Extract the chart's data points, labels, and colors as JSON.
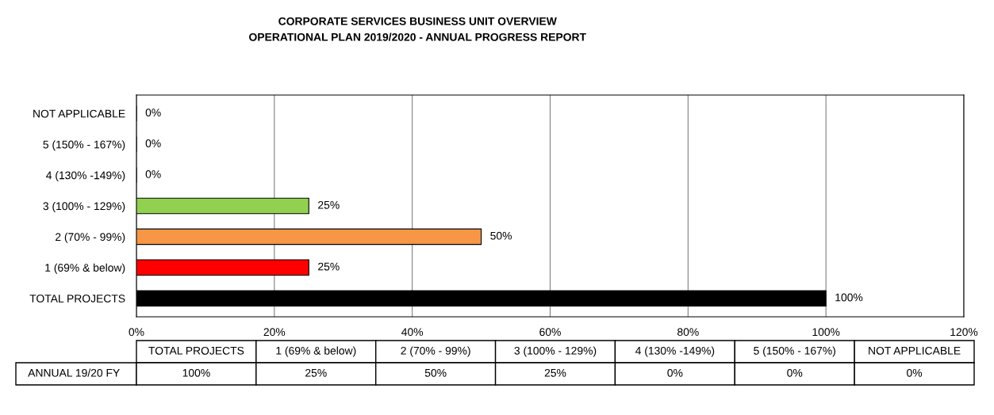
{
  "chart_data": {
    "type": "bar",
    "orientation": "horizontal",
    "title": "CORPORATE SERVICES BUSINESS UNIT OVERVIEW",
    "subtitle": "OPERATIONAL PLAN 2019/2020 - ANNUAL PROGRESS REPORT",
    "categories": [
      "NOT APPLICABLE",
      "5 (150% - 167%)",
      "4 (130% -149%)",
      "3 (100% - 129%)",
      "2 (70% - 99%)",
      "1 (69% & below)",
      "TOTAL PROJECTS"
    ],
    "series": [
      {
        "name": "ANNUAL 19/20 FY",
        "values": [
          0,
          0,
          0,
          25,
          50,
          25,
          100
        ],
        "colors": [
          "#ffffff",
          "#ffffff",
          "#ffffff",
          "#92d050",
          "#f79646",
          "#ff0000",
          "#000000"
        ],
        "value_labels": [
          "0%",
          "0%",
          "0%",
          "25%",
          "50%",
          "25%",
          "100%"
        ]
      }
    ],
    "xlim": [
      0,
      120
    ],
    "xticks": [
      {
        "value": 0,
        "label": "0%"
      },
      {
        "value": 20,
        "label": "20%"
      },
      {
        "value": 40,
        "label": "40%"
      },
      {
        "value": 60,
        "label": "60%"
      },
      {
        "value": 80,
        "label": "80%"
      },
      {
        "value": 100,
        "label": "100%"
      },
      {
        "value": 120,
        "label": "120%"
      }
    ],
    "grid": "x",
    "legend": false
  }
}
